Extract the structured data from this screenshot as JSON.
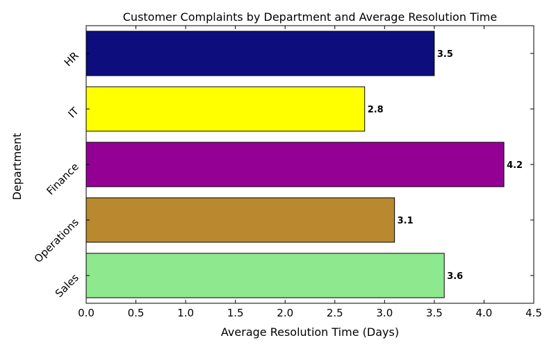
{
  "chart_data": {
    "type": "bar",
    "orientation": "horizontal",
    "title": "Customer Complaints by Department and Average Resolution Time",
    "xlabel": "Average Resolution Time (Days)",
    "ylabel": "Department",
    "categories": [
      "Sales",
      "Operations",
      "Finance",
      "IT",
      "HR"
    ],
    "values": [
      3.6,
      3.1,
      4.2,
      2.8,
      3.5
    ],
    "value_labels": [
      "3.6",
      "3.1",
      "4.2",
      "2.8",
      "3.5"
    ],
    "colors": [
      "#8ee88e",
      "#b8892f",
      "#940094",
      "#ffff00",
      "#0d0d7d"
    ],
    "xlim": [
      0,
      4.5
    ],
    "xticks": [
      "0.0",
      "0.5",
      "1.0",
      "1.5",
      "2.0",
      "2.5",
      "3.0",
      "3.5",
      "4.0",
      "4.5"
    ],
    "grid": false
  }
}
